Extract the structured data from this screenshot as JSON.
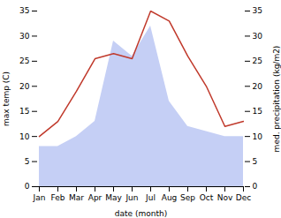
{
  "chart_data": {
    "type": "line",
    "xlabel": "date (month)",
    "ylabel": "max temp (C)",
    "y2label": "med. precipitation (kg/m2)",
    "categories": [
      "Jan",
      "Feb",
      "Mar",
      "Apr",
      "May",
      "Jun",
      "Jul",
      "Aug",
      "Sep",
      "Oct",
      "Nov",
      "Dec"
    ],
    "series": [
      {
        "type": "area",
        "axis": "y2",
        "color": "#c5cff5",
        "values": [
          8,
          8,
          10,
          13,
          29,
          26,
          32,
          17,
          12,
          11,
          10,
          10
        ]
      },
      {
        "type": "line",
        "color": "#c0392b",
        "values": [
          10,
          13,
          19,
          25.5,
          26.5,
          25.5,
          35,
          33,
          26,
          20,
          12,
          13
        ]
      }
    ],
    "ylim": [
      0,
      35
    ],
    "yticks": [
      0,
      5,
      10,
      15,
      20,
      25,
      30,
      35
    ],
    "y2lim": [
      0,
      35
    ],
    "y2ticks": [
      0,
      5,
      10,
      15,
      20,
      25,
      30,
      35
    ],
    "grid": false
  }
}
